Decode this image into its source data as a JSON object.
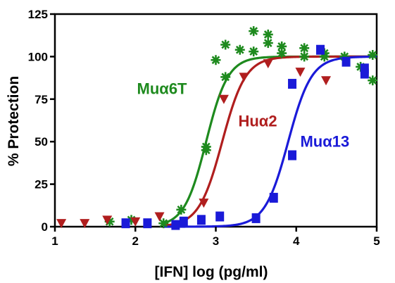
{
  "chart_data": {
    "type": "scatter",
    "title": "",
    "xlabel": "[IFN] log (pg/ml)",
    "ylabel": "% Protection",
    "xlim": [
      1,
      5
    ],
    "ylim": [
      0,
      125
    ],
    "xticks": [
      "1",
      "2",
      "3",
      "4",
      "5"
    ],
    "yticks": [
      "0",
      "25",
      "50",
      "75",
      "100",
      "125"
    ],
    "grid": false,
    "legend": "inline labels near curves",
    "series": [
      {
        "name": "Muα6T",
        "color": "#1e8a1e",
        "marker": "asterisk",
        "label_pos": [
          2.02,
          78
        ],
        "fit": {
          "ec50": 2.88,
          "hill": 3.2,
          "bottom": 0,
          "top": 100
        },
        "points": [
          [
            1.68,
            3
          ],
          [
            1.95,
            4
          ],
          [
            2.35,
            2
          ],
          [
            2.57,
            10
          ],
          [
            2.88,
            45
          ],
          [
            2.88,
            47
          ],
          [
            3.0,
            98
          ],
          [
            3.12,
            88
          ],
          [
            3.12,
            107
          ],
          [
            3.3,
            104
          ],
          [
            3.47,
            115
          ],
          [
            3.47,
            103
          ],
          [
            3.65,
            113
          ],
          [
            3.65,
            108
          ],
          [
            3.82,
            106
          ],
          [
            3.82,
            102
          ],
          [
            4.1,
            105
          ],
          [
            4.1,
            100
          ],
          [
            4.35,
            102
          ],
          [
            4.35,
            100
          ],
          [
            4.6,
            100
          ],
          [
            4.8,
            94
          ],
          [
            4.95,
            101
          ],
          [
            4.95,
            86
          ]
        ]
      },
      {
        "name": "Huα2",
        "color": "#b01e1e",
        "marker": "triangle-down",
        "label_pos": [
          3.28,
          59
        ],
        "fit": {
          "ec50": 3.08,
          "hill": 3.0,
          "bottom": 0,
          "top": 100
        },
        "points": [
          [
            1.08,
            2
          ],
          [
            1.37,
            2
          ],
          [
            1.65,
            4
          ],
          [
            2.0,
            3
          ],
          [
            2.3,
            6
          ],
          [
            2.85,
            14
          ],
          [
            3.1,
            75
          ],
          [
            3.35,
            88
          ],
          [
            3.65,
            96
          ],
          [
            4.05,
            91
          ],
          [
            4.37,
            86
          ]
        ]
      },
      {
        "name": "Muα13",
        "color": "#1a1ad8",
        "marker": "square",
        "label_pos": [
          4.05,
          47
        ],
        "fit": {
          "ec50": 3.9,
          "hill": 3.0,
          "bottom": 0,
          "top": 100
        },
        "points": [
          [
            1.88,
            2
          ],
          [
            2.15,
            2
          ],
          [
            2.5,
            1
          ],
          [
            2.6,
            3
          ],
          [
            2.82,
            4
          ],
          [
            3.05,
            6
          ],
          [
            3.5,
            5
          ],
          [
            3.72,
            17
          ],
          [
            3.95,
            42
          ],
          [
            3.95,
            84
          ],
          [
            4.3,
            104
          ],
          [
            4.62,
            97
          ],
          [
            4.85,
            93
          ],
          [
            4.85,
            90
          ]
        ]
      }
    ]
  }
}
